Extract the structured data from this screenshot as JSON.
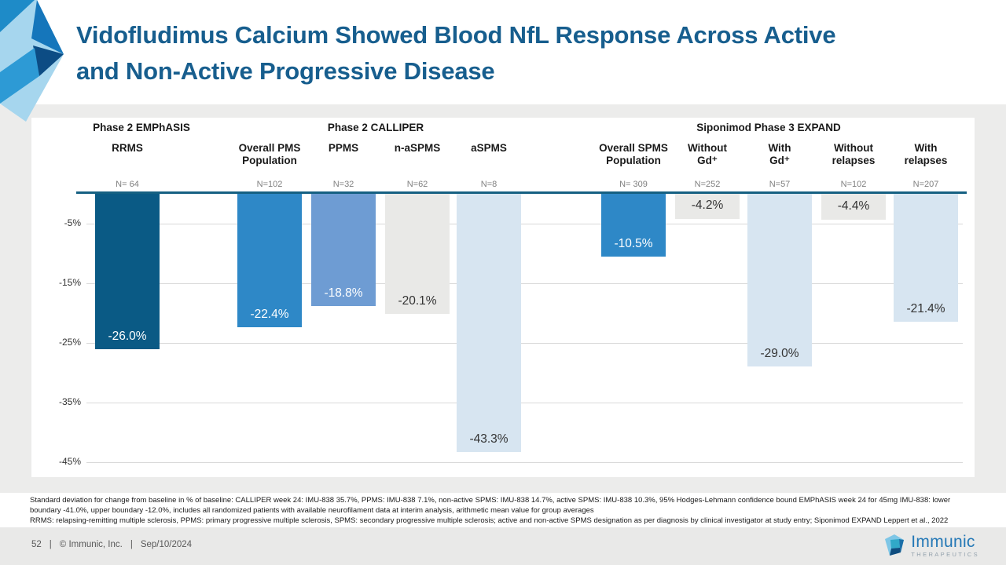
{
  "slide": {
    "title": "Vidofludimus Calcium Showed Blood NfL Response Across Active and Non-Active Progressive Disease",
    "title_lines": [
      "Vidofludimus Calcium Showed Blood NfL Response Across Active",
      "and Non-Active Progressive Disease"
    ],
    "title_color": "#175E8E"
  },
  "chart_data": {
    "type": "bar",
    "unit": "% change from baseline",
    "ylim": [
      0,
      -45
    ],
    "grid": true,
    "baseline_color": "#156082",
    "yticks": [
      {
        "value": -5,
        "label": "-5%"
      },
      {
        "value": -15,
        "label": "-15%"
      },
      {
        "value": -25,
        "label": "-25%"
      },
      {
        "value": -35,
        "label": "-35%"
      },
      {
        "value": -45,
        "label": "-45%"
      }
    ],
    "groups": [
      {
        "label": "Phase 2 EMPhASIS",
        "center": 140
      },
      {
        "label": "Phase 2 CALLIPER",
        "center": 438
      },
      {
        "label": "Siponimod Phase 3 EXPAND",
        "center": 938
      }
    ],
    "bars": [
      {
        "id": "rrms",
        "group": "Phase 2 EMPhASIS",
        "category": "RRMS",
        "label_lines": [
          "RRMS"
        ],
        "n_label": "N= 64",
        "value": -26.0,
        "value_label": "-26.0%",
        "color": "#0A5A85",
        "text_color": "#FFFFFF",
        "center": 122
      },
      {
        "id": "overall-pms",
        "group": "Phase 2 CALLIPER",
        "category": "Overall PMS Population",
        "label_lines": [
          "Overall PMS",
          "Population"
        ],
        "n_label": "N=102",
        "value": -22.4,
        "value_label": "-22.4%",
        "color": "#2E88C7",
        "text_color": "#FFFFFF",
        "center": 303
      },
      {
        "id": "ppms",
        "group": "Phase 2 CALLIPER",
        "category": "PPMS",
        "label_lines": [
          "PPMS"
        ],
        "n_label": "N=32",
        "value": -18.8,
        "value_label": "-18.8%",
        "color": "#6E9CD3",
        "text_color": "#FFFFFF",
        "center": 397
      },
      {
        "id": "n-aspms",
        "group": "Phase 2 CALLIPER",
        "category": "n-aSPMS",
        "label_lines": [
          "n-aSPMS"
        ],
        "n_label": "N=62",
        "value": -20.1,
        "value_label": "-20.1%",
        "color": "#E9E9E7",
        "text_color": "#333333",
        "center": 491
      },
      {
        "id": "aspms",
        "group": "Phase 2 CALLIPER",
        "category": "aSPMS",
        "label_lines": [
          "aSPMS"
        ],
        "n_label": "N=8",
        "value": -43.3,
        "value_label": "-43.3%",
        "color": "#D7E5F1",
        "text_color": "#333333",
        "center": 582
      },
      {
        "id": "overall-spms",
        "group": "Siponimod Phase 3 EXPAND",
        "category": "Overall SPMS Population",
        "label_lines": [
          "Overall SPMS",
          "Population"
        ],
        "n_label": "N= 309",
        "value": -10.5,
        "value_label": "-10.5%",
        "color": "#2E88C7",
        "text_color": "#FFFFFF",
        "center": 766
      },
      {
        "id": "without-gd",
        "group": "Siponimod Phase 3 EXPAND",
        "category": "Without Gd⁺",
        "label_lines": [
          "Without",
          "Gd⁺"
        ],
        "n_label": "N=252",
        "value": -4.2,
        "value_label": "-4.2%",
        "color": "#E9E9E7",
        "text_color": "#333333",
        "center": 860
      },
      {
        "id": "with-gd",
        "group": "Siponimod Phase 3 EXPAND",
        "category": "With Gd⁺",
        "label_lines": [
          "With",
          "Gd⁺"
        ],
        "n_label": "N=57",
        "value": -29.0,
        "value_label": "-29.0%",
        "color": "#D7E5F1",
        "text_color": "#333333",
        "center": 952
      },
      {
        "id": "without-relapses",
        "group": "Siponimod Phase 3 EXPAND",
        "category": "Without relapses",
        "label_lines": [
          "Without",
          "relapses"
        ],
        "n_label": "N=102",
        "value": -4.4,
        "value_label": "-4.4%",
        "color": "#E9E9E7",
        "text_color": "#333333",
        "center": 1046
      },
      {
        "id": "with-relapses",
        "group": "Siponimod Phase 3 EXPAND",
        "category": "With relapses",
        "label_lines": [
          "With",
          "relapses"
        ],
        "n_label": "N=207",
        "value": -21.4,
        "value_label": "-21.4%",
        "color": "#D7E5F1",
        "text_color": "#333333",
        "center": 1138
      }
    ]
  },
  "footnotes": [
    "Standard deviation for change from baseline in % of baseline: CALLIPER week 24: IMU-838 35.7%, PPMS: IMU-838 7.1%, non-active SPMS: IMU-838 14.7%, active SPMS: IMU-838 10.3%, 95% Hodges-Lehmann confidence bound EMPhASIS week 24 for 45mg IMU-838: lower boundary -41.0%, upper boundary -12.0%, includes all randomized patients with available neurofilament data at interim analysis, arithmetic mean value for group averages",
    "RRMS: relapsing-remitting multiple sclerosis, PPMS: primary progressive multiple sclerosis, SPMS: secondary progressive multiple sclerosis; active and non-active SPMS designation as per diagnosis by clinical investigator at study entry; Siponimod EXPAND Leppert et al., 2022"
  ],
  "footer": {
    "page_number": "52",
    "separator": "|",
    "copyright": "© Immunic, Inc.",
    "date": "Sep/10/2024"
  },
  "logo": {
    "name": "Immunic",
    "tagline": "THERAPEUTICS"
  }
}
